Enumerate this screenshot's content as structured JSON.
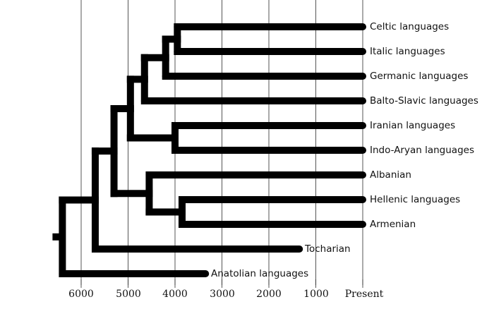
{
  "diagram": {
    "type": "dendrogram",
    "title": "",
    "axis": {
      "label": "",
      "ticks": [
        {
          "label": "6000",
          "value": 6000
        },
        {
          "label": "5000",
          "value": 5000
        },
        {
          "label": "4000",
          "value": 4000
        },
        {
          "label": "3000",
          "value": 3000
        },
        {
          "label": "2000",
          "value": 2000
        },
        {
          "label": "1000",
          "value": 1000
        },
        {
          "label": "Present",
          "value": 0
        }
      ],
      "unit": "years before present"
    },
    "leaves": [
      {
        "id": "celtic",
        "label": "Celtic languages",
        "end": 0
      },
      {
        "id": "italic",
        "label": "Italic languages",
        "end": 0
      },
      {
        "id": "germanic",
        "label": "Germanic languages",
        "end": 0
      },
      {
        "id": "balto_slavic",
        "label": "Balto-Slavic languages",
        "end": 0
      },
      {
        "id": "iranian",
        "label": "Iranian languages",
        "end": 0
      },
      {
        "id": "indo_aryan",
        "label": "Indo-Aryan languages",
        "end": 0
      },
      {
        "id": "albanian",
        "label": "Albanian",
        "end": 0
      },
      {
        "id": "hellenic",
        "label": "Hellenic languages",
        "end": 0
      },
      {
        "id": "armenian",
        "label": "Armenian",
        "end": 0
      },
      {
        "id": "tocharian",
        "label": "Tocharian",
        "end": 1350
      },
      {
        "id": "anatolian",
        "label": "Anatolian languages",
        "end": 3350
      }
    ],
    "nodes": [
      {
        "id": "root",
        "time": 6400,
        "children": [
          "n_core",
          "anatolian"
        ]
      },
      {
        "id": "n_core",
        "time": 5700,
        "children": [
          "n_nuclear",
          "tocharian"
        ]
      },
      {
        "id": "n_nuclear",
        "time": 5300,
        "children": [
          "n_north",
          "n_south"
        ]
      },
      {
        "id": "n_north",
        "time": 4950,
        "children": [
          "n_west",
          "n_indoiranian"
        ]
      },
      {
        "id": "n_west",
        "time": 4650,
        "children": [
          "n_italoceltic_germanic",
          "balto_slavic"
        ]
      },
      {
        "id": "n_italoceltic_germanic",
        "time": 4200,
        "children": [
          "n_italoceltic",
          "germanic"
        ]
      },
      {
        "id": "n_italoceltic",
        "time": 3950,
        "children": [
          "celtic",
          "italic"
        ]
      },
      {
        "id": "n_indoiranian",
        "time": 4000,
        "children": [
          "iranian",
          "indo_aryan"
        ]
      },
      {
        "id": "n_south",
        "time": 4550,
        "children": [
          "albanian",
          "n_graeco_armenian"
        ]
      },
      {
        "id": "n_graeco_armenian",
        "time": 3850,
        "children": [
          "hellenic",
          "armenian"
        ]
      }
    ],
    "colors": {
      "branch": "#000000",
      "grid": "#555555",
      "text": "#111111",
      "background": "#ffffff"
    }
  }
}
